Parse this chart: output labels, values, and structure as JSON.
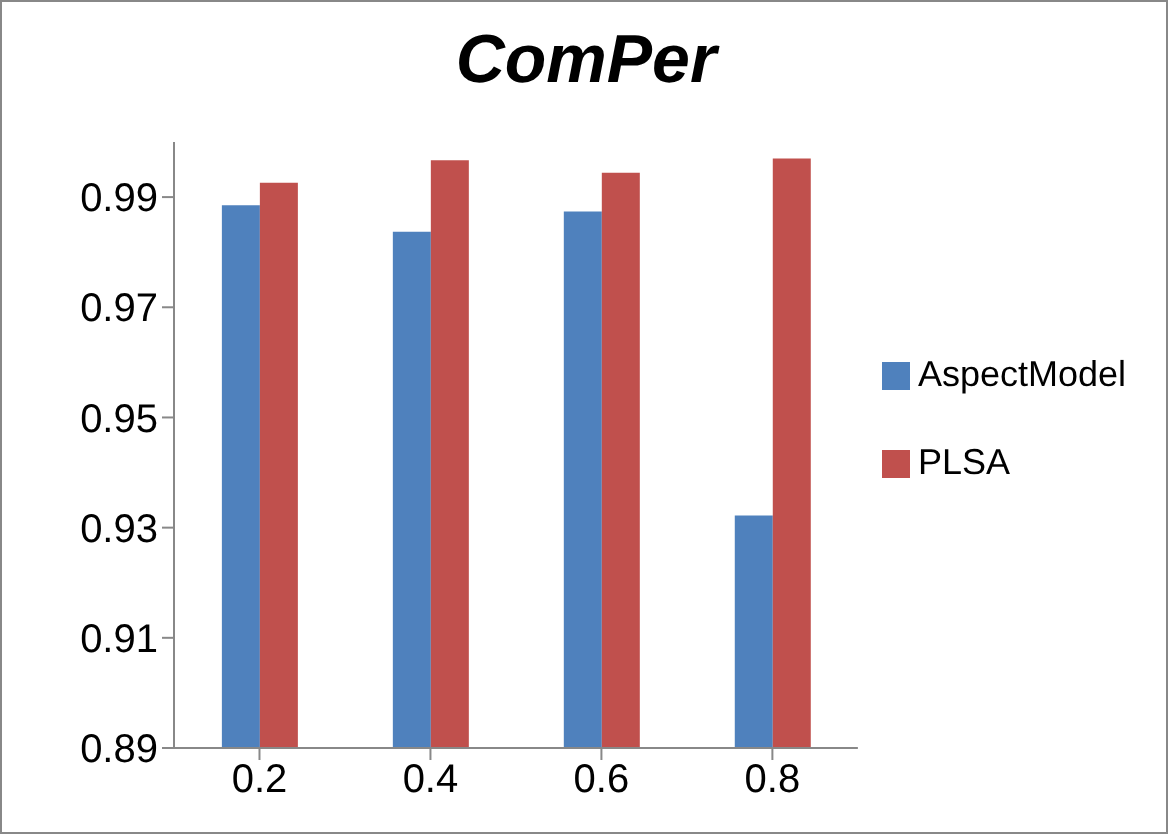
{
  "chart_data": {
    "type": "bar",
    "title": "ComPer",
    "categories": [
      "0.2",
      "0.4",
      "0.6",
      "0.8"
    ],
    "series": [
      {
        "name": "AspectModel",
        "color": "#4f81bd",
        "values": [
          0.9885,
          0.9837,
          0.9874,
          0.9322
        ]
      },
      {
        "name": "PLSA",
        "color": "#c0504d",
        "values": [
          0.9926,
          0.9967,
          0.9944,
          0.997
        ]
      }
    ],
    "ylim": [
      0.89,
      1.0
    ],
    "yticks": [
      0.89,
      0.91,
      0.93,
      0.95,
      0.97,
      0.99
    ],
    "grid": false,
    "legend": "right"
  }
}
